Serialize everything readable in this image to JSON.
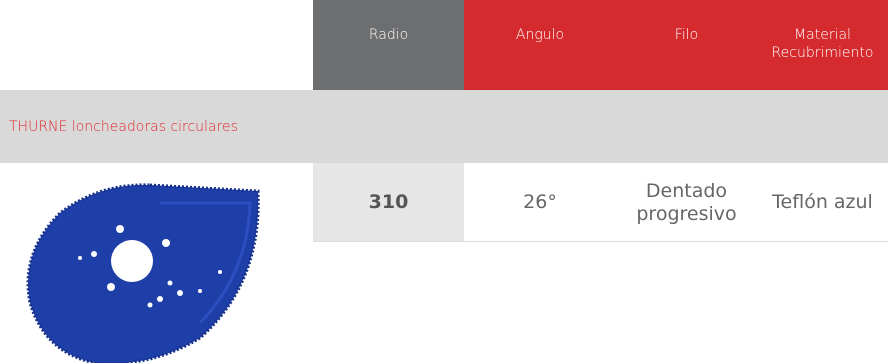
{
  "table": {
    "header": [
      "Radio",
      "Angulo",
      "Filo",
      "Material Recubrimiento"
    ],
    "section": "THURNE loncheadoras circulares",
    "rows": [
      [
        "310",
        "26°",
        "Dentado progresivo",
        "Teflón azul"
      ]
    ]
  }
}
